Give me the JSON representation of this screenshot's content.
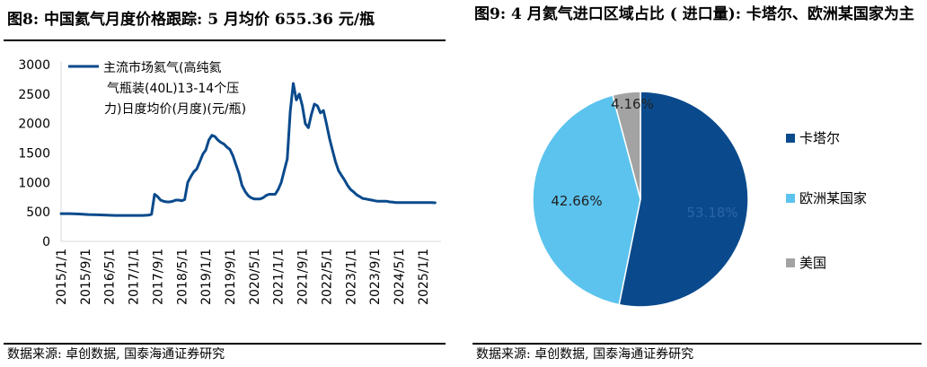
{
  "left": {
    "title": "图8:  中国氦气月度价格跟踪:  5 月均价 655.36 元/瓶",
    "source": "数据来源:  卓创数据,  国泰海通证券研究"
  },
  "right": {
    "title": "图9:  4 月氦气进口区域占比 ( 进口量):  卡塔尔、欧洲某国家为主",
    "source": "数据来源:  卓创数据,  国泰海通证券研究"
  },
  "colors": {
    "line": "#0a4a8c",
    "qatar": "#0a4a8c",
    "europe": "#5bc3ee",
    "usa": "#a3a3a3",
    "axis": "#d9d9d9"
  },
  "chart_data": [
    {
      "type": "line",
      "title": "",
      "xlabel": "",
      "ylabel": "",
      "ylim": [
        0,
        3000
      ],
      "yticks": [
        0,
        500,
        1000,
        1500,
        2000,
        2500,
        3000
      ],
      "xtick_labels": [
        "2015/1/1",
        "2015/9/1",
        "2016/5/1",
        "2017/1/1",
        "2017/9/1",
        "2018/5/1",
        "2019/1/1",
        "2019/9/1",
        "2020/5/1",
        "2021/1/1",
        "2021/9/1",
        "2022/5/1",
        "2023/1/1",
        "2023/9/1",
        "2024/5/1",
        "2025/1/1"
      ],
      "grid": false,
      "legend": "top-left",
      "series": [
        {
          "name": "主流市场氦气(高纯氦气瓶装(40L)13-14个压力)日度均价(月度)(元/瓶)",
          "x": [
            "2015-01",
            "2015-04",
            "2015-07",
            "2015-10",
            "2016-01",
            "2016-04",
            "2016-07",
            "2016-10",
            "2017-01",
            "2017-04",
            "2017-06",
            "2017-07",
            "2017-08",
            "2017-09",
            "2017-10",
            "2017-11",
            "2017-12",
            "2018-01",
            "2018-02",
            "2018-03",
            "2018-04",
            "2018-05",
            "2018-06",
            "2018-07",
            "2018-08",
            "2018-09",
            "2018-10",
            "2018-11",
            "2018-12",
            "2019-01",
            "2019-02",
            "2019-03",
            "2019-04",
            "2019-05",
            "2019-06",
            "2019-07",
            "2019-08",
            "2019-09",
            "2019-10",
            "2019-11",
            "2019-12",
            "2020-01",
            "2020-02",
            "2020-03",
            "2020-04",
            "2020-05",
            "2020-06",
            "2020-07",
            "2020-08",
            "2020-09",
            "2020-10",
            "2020-11",
            "2020-12",
            "2021-01",
            "2021-02",
            "2021-03",
            "2021-04",
            "2021-05",
            "2021-06",
            "2021-07",
            "2021-08",
            "2021-09",
            "2021-10",
            "2021-11",
            "2021-12",
            "2022-01",
            "2022-02",
            "2022-03",
            "2022-04",
            "2022-05",
            "2022-06",
            "2022-07",
            "2022-08",
            "2022-09",
            "2022-10",
            "2022-11",
            "2022-12",
            "2023-01",
            "2023-02",
            "2023-03",
            "2023-04",
            "2023-05",
            "2023-06",
            "2023-07",
            "2023-08",
            "2023-09",
            "2023-10",
            "2023-11",
            "2023-12",
            "2024-01",
            "2024-02",
            "2024-03",
            "2024-04",
            "2024-05",
            "2024-06",
            "2024-07",
            "2024-08",
            "2024-09",
            "2024-10",
            "2024-11",
            "2024-12",
            "2025-01",
            "2025-02",
            "2025-03",
            "2025-04",
            "2025-05"
          ],
          "values": [
            470,
            470,
            465,
            455,
            450,
            445,
            440,
            440,
            440,
            440,
            445,
            460,
            800,
            760,
            700,
            680,
            670,
            670,
            680,
            700,
            700,
            690,
            710,
            1000,
            1100,
            1180,
            1230,
            1350,
            1480,
            1550,
            1720,
            1800,
            1780,
            1720,
            1680,
            1650,
            1600,
            1560,
            1450,
            1300,
            1150,
            950,
            850,
            780,
            740,
            720,
            720,
            720,
            740,
            780,
            800,
            800,
            800,
            880,
            1000,
            1200,
            1400,
            2200,
            2680,
            2400,
            2500,
            2300,
            2000,
            1930,
            2150,
            2330,
            2300,
            2180,
            2220,
            2000,
            1750,
            1550,
            1350,
            1200,
            1120,
            1040,
            950,
            880,
            840,
            790,
            760,
            730,
            720,
            710,
            700,
            690,
            680,
            680,
            680,
            680,
            670,
            665,
            660,
            660,
            660,
            660,
            660,
            660,
            660,
            660,
            660,
            660,
            660,
            660,
            660,
            655.36
          ]
        }
      ]
    },
    {
      "type": "pie",
      "title": "",
      "legend": "right",
      "labels": [
        "卡塔尔",
        "欧洲某国家",
        "美国"
      ],
      "values": [
        53.18,
        42.66,
        4.16
      ],
      "value_labels": [
        "53.18%",
        "42.66%",
        "4.16%"
      ]
    }
  ]
}
